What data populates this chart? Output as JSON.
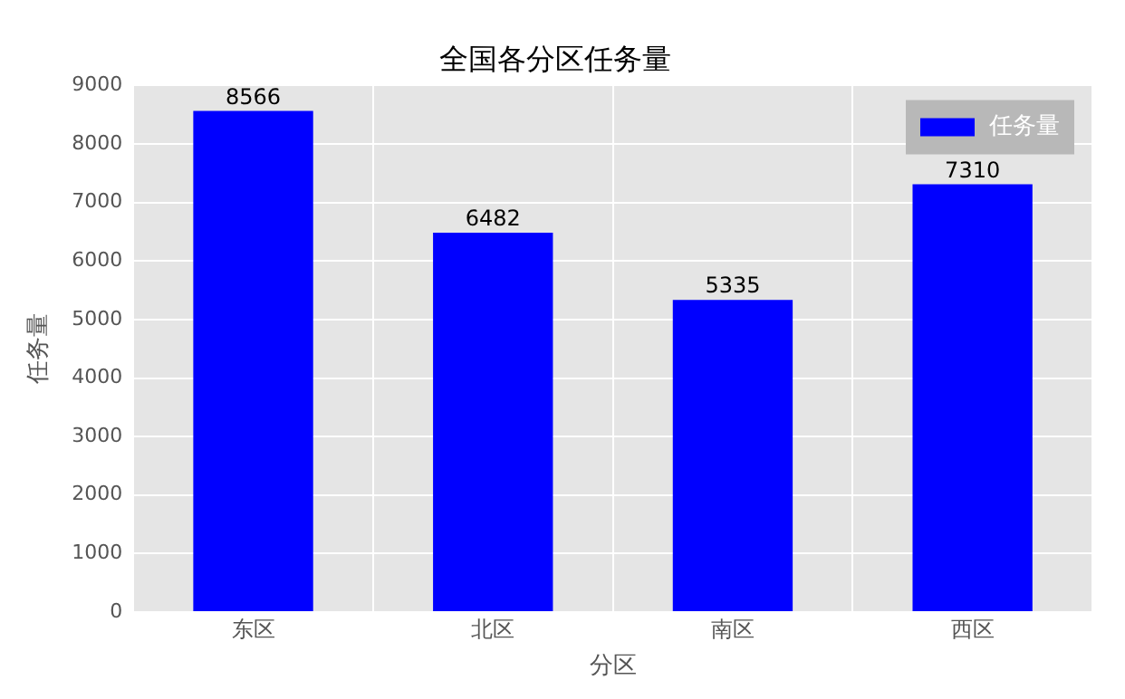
{
  "chart_data": {
    "type": "bar",
    "title": "全国各分区任务量",
    "xlabel": "分区",
    "ylabel": "任务量",
    "categories": [
      "东区",
      "北区",
      "南区",
      "西区"
    ],
    "series": [
      {
        "name": "任务量",
        "color": "#0000ff",
        "values": [
          8566,
          6482,
          5335,
          7310
        ]
      }
    ],
    "ylim": [
      0,
      9000
    ],
    "yticks": [
      0,
      1000,
      2000,
      3000,
      4000,
      5000,
      6000,
      7000,
      8000,
      9000
    ],
    "grid": true,
    "legend": "top right",
    "data_labels": true
  }
}
